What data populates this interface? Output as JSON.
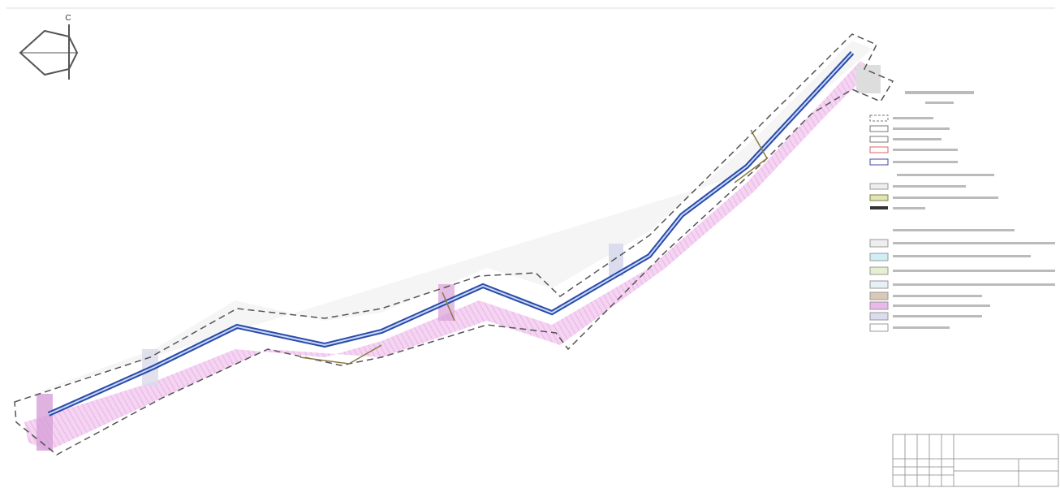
{
  "north_label": "С"
}
